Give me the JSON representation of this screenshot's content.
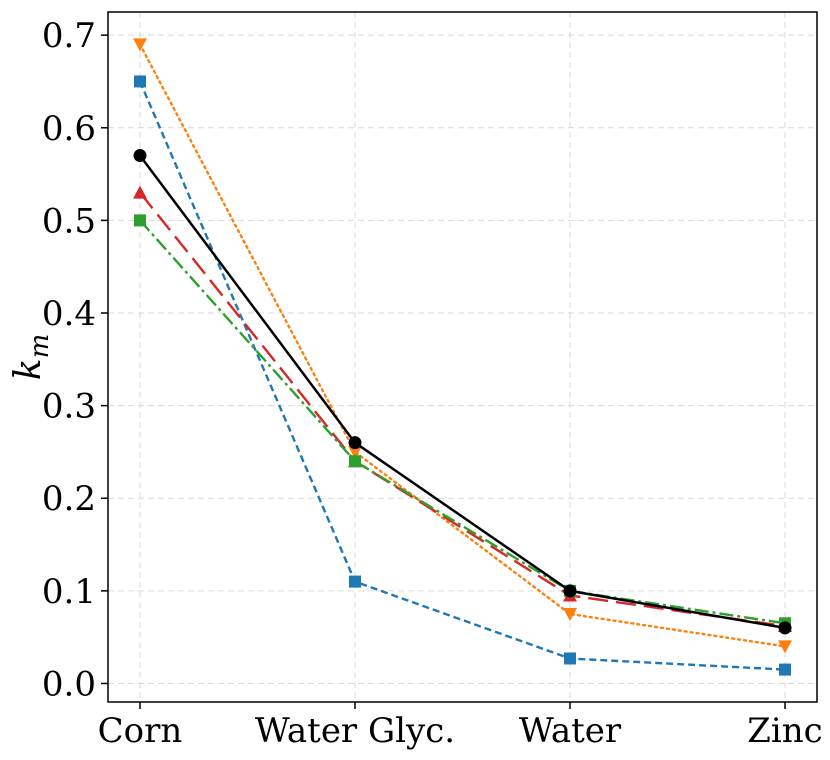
{
  "chart_data": {
    "type": "line",
    "title": "",
    "xlabel": "",
    "ylabel": "k_m",
    "ylabel_main": "k",
    "ylabel_sub": "m",
    "categories": [
      "Corn",
      "Water Glyc.",
      "Water",
      "Zinc"
    ],
    "ylim": [
      -0.02,
      0.725
    ],
    "yticks": [
      0.0,
      0.1,
      0.2,
      0.3,
      0.4,
      0.5,
      0.6,
      0.7
    ],
    "ytick_labels": [
      "0.0",
      "0.1",
      "0.2",
      "0.3",
      "0.4",
      "0.5",
      "0.6",
      "0.7"
    ],
    "grid": true,
    "series": [
      {
        "name": "blue-dashed-square",
        "color": "#1f77b4",
        "linestyle": "dashed",
        "marker": "square",
        "values": [
          0.65,
          0.11,
          0.027,
          0.015
        ]
      },
      {
        "name": "orange-dotted-triangle-down",
        "color": "#ff7f0e",
        "linestyle": "dotted",
        "marker": "triangle-down",
        "values": [
          0.69,
          0.25,
          0.075,
          0.04
        ]
      },
      {
        "name": "red-longdash-triangle-up",
        "color": "#d62728",
        "linestyle": "longdash",
        "marker": "triangle-up",
        "values": [
          0.53,
          0.24,
          0.095,
          0.062
        ]
      },
      {
        "name": "green-dashdot-square",
        "color": "#2ca02c",
        "linestyle": "dashdot",
        "marker": "square",
        "values": [
          0.5,
          0.24,
          0.1,
          0.065
        ]
      },
      {
        "name": "black-solid-circle",
        "color": "#000000",
        "linestyle": "solid",
        "marker": "circle",
        "values": [
          0.57,
          0.26,
          0.1,
          0.06
        ]
      }
    ]
  }
}
